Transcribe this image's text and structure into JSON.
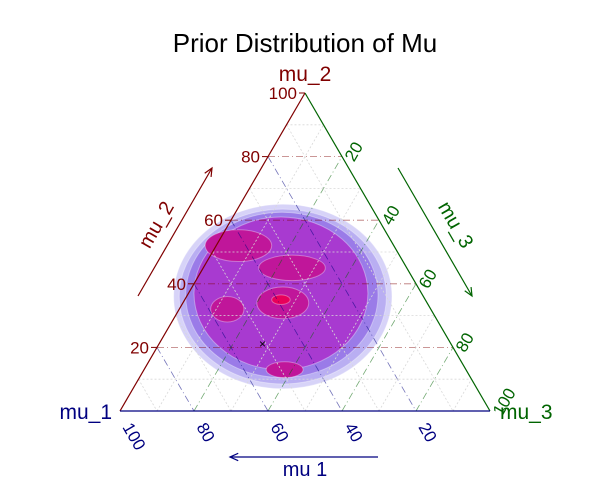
{
  "chart_data": {
    "type": "ternary",
    "title": "Prior Distribution of Mu",
    "axes": {
      "left": {
        "label": "mu_1",
        "color": "#000080",
        "tick_values": [
          20,
          40,
          60,
          80,
          100
        ],
        "tick_labels": [
          "20",
          "40",
          "60",
          "80",
          "100"
        ],
        "arrow_label": "mu  1",
        "arrow_direction": "left"
      },
      "top": {
        "label": "mu_2",
        "color": "#800000",
        "tick_values": [
          20,
          40,
          60,
          80,
          100
        ],
        "tick_labels": [
          "20",
          "40",
          "60",
          "80",
          "100"
        ],
        "arrow_label": "mu_2",
        "arrow_direction": "up"
      },
      "right": {
        "label": "mu_3",
        "color": "#006400",
        "tick_values": [
          20,
          40,
          60,
          80,
          100
        ],
        "tick_labels": [
          "20",
          "40",
          "60",
          "80",
          "100"
        ],
        "arrow_label": "mu_3",
        "arrow_direction": "down"
      }
    },
    "range": [
      0,
      100
    ],
    "grid": true,
    "density_colors": [
      "#d7d3f8",
      "#b9aef2",
      "#9a7be8",
      "#a83ad0",
      "#c0169a",
      "#e8005a"
    ],
    "density_levels": [
      {
        "level": 1,
        "blobs": [
          {
            "mu_1": 38.0,
            "mu_2": 36.0,
            "mu_3": 26.0,
            "rx": 29.5,
            "ry": 29.0
          }
        ]
      },
      {
        "level": 2,
        "blobs": [
          {
            "mu_1": 38.0,
            "mu_2": 36.0,
            "mu_3": 26.0,
            "rx": 28.0,
            "ry": 27.5
          }
        ]
      },
      {
        "level": 3,
        "blobs": [
          {
            "mu_1": 38.0,
            "mu_2": 36.5,
            "mu_3": 25.5,
            "rx": 26.0,
            "ry": 26.0
          }
        ]
      },
      {
        "level": 4,
        "blobs": [
          {
            "mu_1": 38.0,
            "mu_2": 37.0,
            "mu_3": 25.0,
            "rx": 23.5,
            "ry": 24.0
          }
        ]
      },
      {
        "level": 5,
        "blobs": [
          {
            "mu_1": 42.0,
            "mu_2": 52.0,
            "mu_3": 6.0,
            "rx": 9.0,
            "ry": 5.0
          },
          {
            "mu_1": 31.0,
            "mu_2": 45.0,
            "mu_3": 24.0,
            "rx": 9.0,
            "ry": 4.0
          },
          {
            "mu_1": 55.0,
            "mu_2": 32.0,
            "mu_3": 13.0,
            "rx": 4.5,
            "ry": 4.0
          },
          {
            "mu_1": 39.0,
            "mu_2": 34.0,
            "mu_3": 27.0,
            "rx": 7.0,
            "ry": 5.0
          },
          {
            "mu_1": 49.0,
            "mu_2": 13.0,
            "mu_3": 38.0,
            "rx": 5.0,
            "ry": 2.5
          }
        ]
      },
      {
        "level": 6,
        "blobs": [
          {
            "mu_1": 39.0,
            "mu_2": 35.0,
            "mu_3": 26.0,
            "rx": 2.5,
            "ry": 1.5
          }
        ]
      }
    ],
    "marker": {
      "symbol": "×",
      "mu_1": 51.0,
      "mu_2": 21.0,
      "mu_3": 28.0
    }
  }
}
